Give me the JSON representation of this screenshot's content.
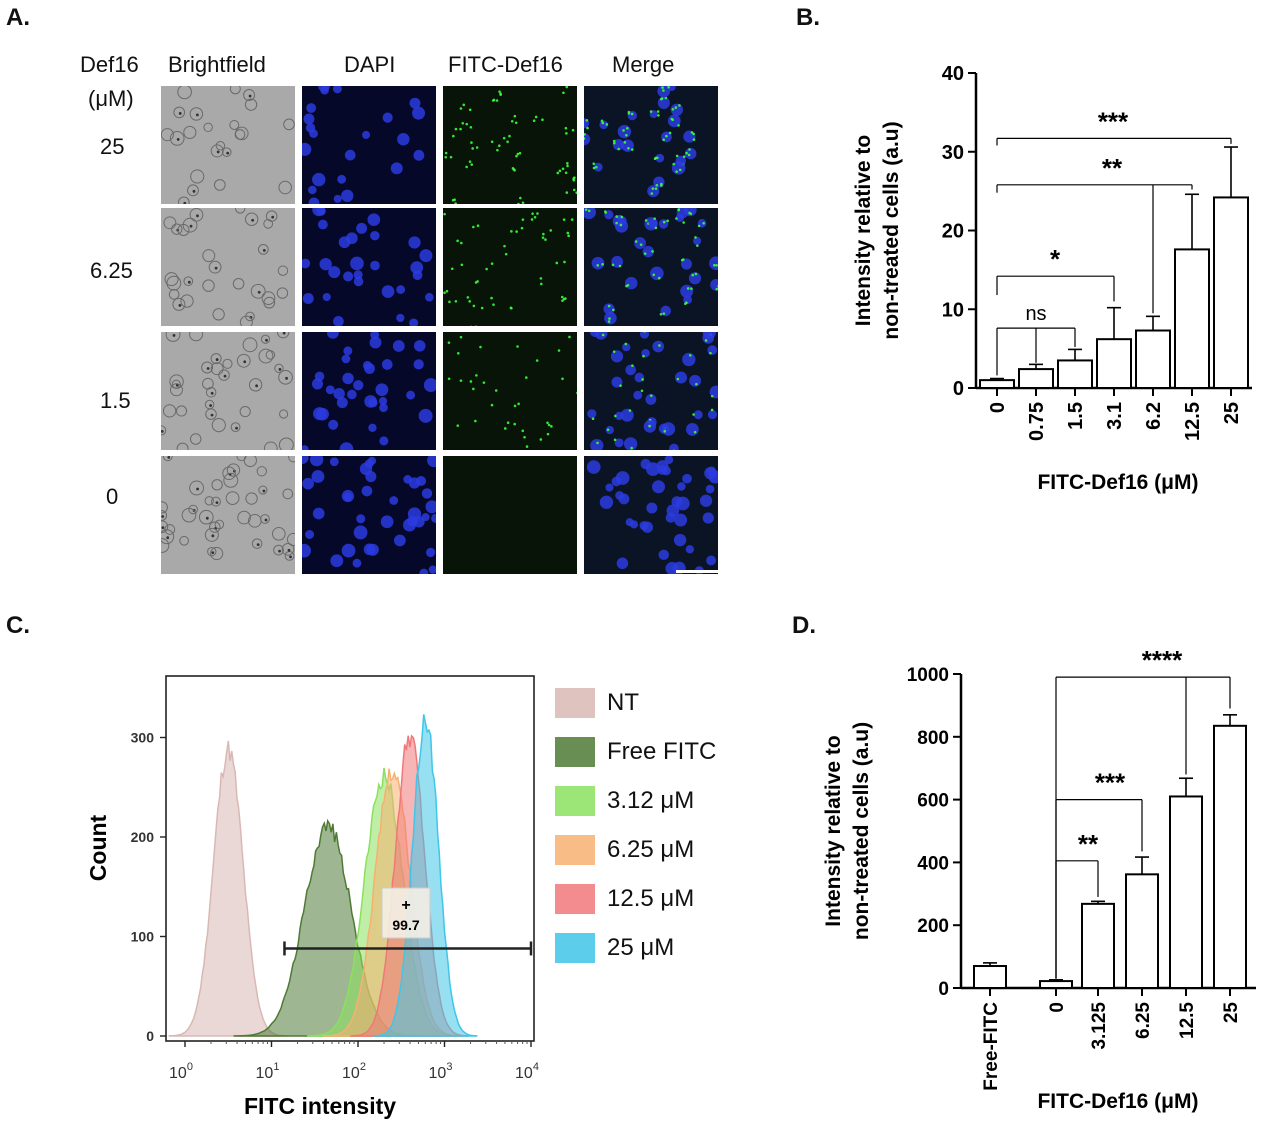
{
  "panels": {
    "a": "A.",
    "b": "B.",
    "c": "C.",
    "d": "D."
  },
  "panel_a": {
    "row_header_line1": "Def16",
    "row_header_line2": "(μM)",
    "columns": [
      "Brightfield",
      "DAPI",
      "FITC-Def16",
      "Merge"
    ],
    "rows": [
      "25",
      "6.25",
      "1.5",
      "0"
    ]
  },
  "chart_data": [
    {
      "panel": "B",
      "type": "bar",
      "categories": [
        "0",
        "0.75",
        "1.5",
        "3.1",
        "6.2",
        "12.5",
        "25"
      ],
      "values": [
        1.0,
        2.4,
        3.5,
        6.2,
        7.3,
        17.6,
        24.2
      ],
      "errors": [
        0.2,
        0.6,
        1.4,
        4.0,
        1.8,
        7.0,
        6.4
      ],
      "xlabel": "FITC-Def16 (μM)",
      "ylabel_line1": "Intensity relative to",
      "ylabel_line2": "non-treated cells (a.u)",
      "ylim": [
        0,
        40
      ],
      "yticks": [
        "0",
        "10",
        "20",
        "30",
        "40"
      ],
      "significance": [
        {
          "label": "ns",
          "compare": [
            "0",
            "0.75",
            "1.5"
          ]
        },
        {
          "label": "*",
          "compare": [
            "0",
            "3.1"
          ]
        },
        {
          "label": "**",
          "compare": [
            "0",
            "6.2",
            "12.5"
          ]
        },
        {
          "label": "***",
          "compare": [
            "0",
            "25"
          ]
        }
      ]
    },
    {
      "panel": "C",
      "type": "histogram",
      "xlabel": "FITC intensity",
      "ylabel": "Count",
      "yticks": [
        "0",
        "100",
        "200",
        "300"
      ],
      "xticks": [
        {
          "base": "10",
          "exp": "0"
        },
        {
          "base": "10",
          "exp": "1"
        },
        {
          "base": "10",
          "exp": "2"
        },
        {
          "base": "10",
          "exp": "3"
        },
        {
          "base": "10",
          "exp": "4"
        }
      ],
      "gate_label": "+",
      "gate_value": "99.7",
      "series": [
        {
          "name": "NT",
          "color": "#d9b8b4",
          "peak_log10": 0.5,
          "peak_count": 288,
          "width": 0.17
        },
        {
          "name": "Free FITC",
          "color": "#4f7a36",
          "peak_log10": 1.65,
          "peak_count": 212,
          "width": 0.27
        },
        {
          "name": "3.12 μM",
          "color": "#8be05f",
          "peak_log10": 2.3,
          "peak_count": 262,
          "width": 0.22
        },
        {
          "name": "6.25 μM",
          "color": "#f7b071",
          "peak_log10": 2.4,
          "peak_count": 268,
          "width": 0.2
        },
        {
          "name": "12.5 μM",
          "color": "#f0787a",
          "peak_log10": 2.6,
          "peak_count": 302,
          "width": 0.17
        },
        {
          "name": "25 μM",
          "color": "#3fc6e8",
          "peak_log10": 2.78,
          "peak_count": 318,
          "width": 0.15
        }
      ]
    },
    {
      "panel": "D",
      "type": "bar",
      "categories": [
        "Free-FITC",
        "0",
        "3.125",
        "6.25",
        "12.5",
        "25"
      ],
      "values": [
        70,
        22,
        268,
        362,
        610,
        835
      ],
      "errors": [
        10,
        4,
        8,
        55,
        58,
        35
      ],
      "xlabel": "FITC-Def16 (μM)",
      "ylabel_line1": "Intensity relative to",
      "ylabel_line2": "non-treated cells (a.u)",
      "ylim": [
        0,
        1000
      ],
      "yticks": [
        "0",
        "200",
        "400",
        "600",
        "800",
        "1000"
      ],
      "significance": [
        {
          "label": "**",
          "compare": [
            "0",
            "3.125"
          ]
        },
        {
          "label": "***",
          "compare": [
            "0",
            "6.25"
          ]
        },
        {
          "label": "****",
          "compare": [
            "0",
            "12.5",
            "25"
          ]
        }
      ]
    }
  ]
}
